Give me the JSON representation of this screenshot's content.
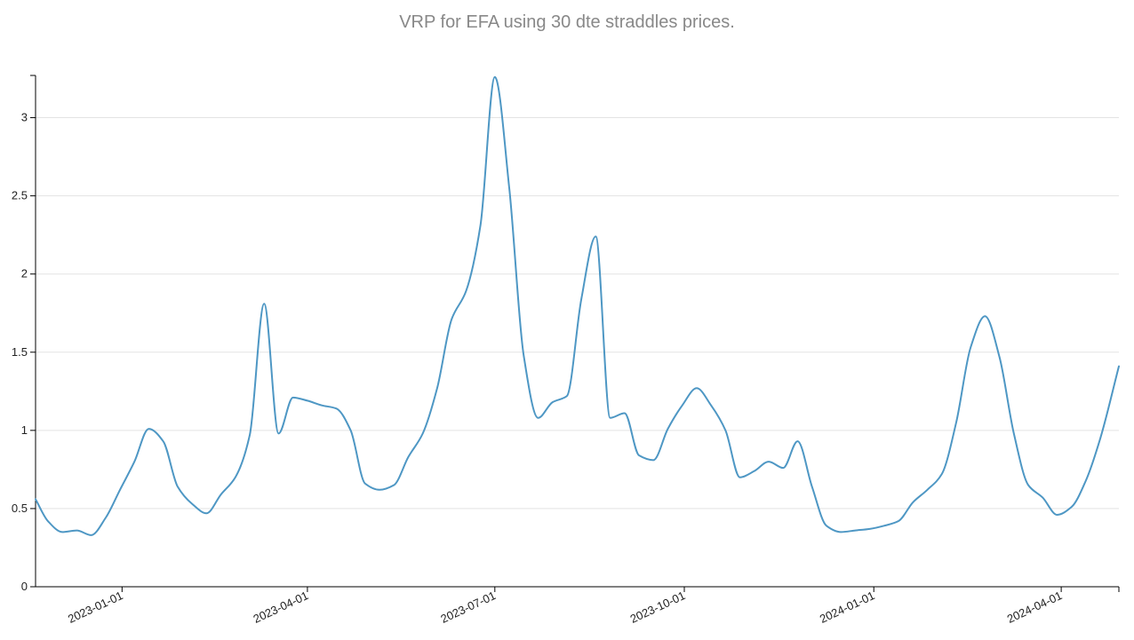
{
  "chart_data": {
    "type": "line",
    "title": "VRP for EFA using 30 dte straddles prices.",
    "xlabel": "",
    "ylabel": "",
    "xlim": [
      "2022-11-20",
      "2024-04-29"
    ],
    "ylim": [
      0,
      3.27
    ],
    "y_ticks": [
      0,
      0.5,
      1,
      1.5,
      2,
      2.5,
      3
    ],
    "y_tick_labels": [
      "0",
      "0.5",
      "1",
      "1.5",
      "2",
      "2.5",
      "3"
    ],
    "x_ticks": [
      "2023-01-01",
      "2023-04-01",
      "2023-07-01",
      "2023-10-01",
      "2024-01-01",
      "2024-04-01"
    ],
    "x_tick_labels": [
      "2023-01-01",
      "2023-04-01",
      "2023-07-01",
      "2023-10-01",
      "2024-01-01",
      "2024-04-01"
    ],
    "grid": "horizontal",
    "color": "#4e97c4",
    "series": [
      {
        "x": [
          "2022-11-20",
          "2022-11-26",
          "2022-12-03",
          "2022-12-10",
          "2022-12-17",
          "2022-12-24",
          "2022-12-31",
          "2023-01-07",
          "2023-01-14",
          "2023-01-21",
          "2023-01-28",
          "2023-02-04",
          "2023-02-11",
          "2023-02-18",
          "2023-02-25",
          "2023-03-04",
          "2023-03-11",
          "2023-03-18",
          "2023-03-25",
          "2023-04-01",
          "2023-04-08",
          "2023-04-15",
          "2023-04-22",
          "2023-04-29",
          "2023-05-06",
          "2023-05-13",
          "2023-05-20",
          "2023-05-27",
          "2023-06-03",
          "2023-06-10",
          "2023-06-17",
          "2023-06-24",
          "2023-07-01",
          "2023-07-08",
          "2023-07-15",
          "2023-07-22",
          "2023-07-29",
          "2023-08-05",
          "2023-08-12",
          "2023-08-19",
          "2023-08-26",
          "2023-09-02",
          "2023-09-09",
          "2023-09-16",
          "2023-09-23",
          "2023-09-30",
          "2023-10-07",
          "2023-10-14",
          "2023-10-21",
          "2023-10-28",
          "2023-11-04",
          "2023-11-11",
          "2023-11-18",
          "2023-11-25",
          "2023-12-02",
          "2023-12-09",
          "2023-12-16",
          "2023-12-23",
          "2023-12-30",
          "2024-01-06",
          "2024-01-13",
          "2024-01-20",
          "2024-01-27",
          "2024-02-03",
          "2024-02-10",
          "2024-02-17",
          "2024-02-24",
          "2024-03-02",
          "2024-03-09",
          "2024-03-16",
          "2024-03-23",
          "2024-03-30",
          "2024-04-06",
          "2024-04-13",
          "2024-04-20",
          "2024-04-29"
        ],
        "y": [
          0.56,
          0.42,
          0.35,
          0.36,
          0.33,
          0.44,
          0.62,
          0.8,
          1.01,
          0.93,
          0.64,
          0.53,
          0.47,
          0.59,
          0.7,
          0.97,
          1.81,
          0.98,
          1.21,
          1.19,
          1.16,
          1.14,
          1.0,
          0.66,
          0.62,
          0.65,
          0.83,
          0.98,
          1.27,
          1.71,
          1.89,
          2.31,
          3.26,
          2.55,
          1.48,
          1.08,
          1.18,
          1.22,
          1.84,
          2.24,
          1.08,
          1.11,
          0.84,
          0.81,
          1.01,
          1.16,
          1.27,
          1.16,
          1.0,
          0.7,
          0.74,
          0.8,
          0.76,
          0.93,
          0.64,
          0.39,
          0.35,
          0.36,
          0.37,
          0.39,
          0.42,
          0.54,
          0.62,
          0.72,
          1.05,
          1.53,
          1.73,
          1.47,
          0.98,
          0.65,
          0.57,
          0.46,
          0.51,
          0.68,
          0.95,
          1.41
        ]
      }
    ]
  }
}
